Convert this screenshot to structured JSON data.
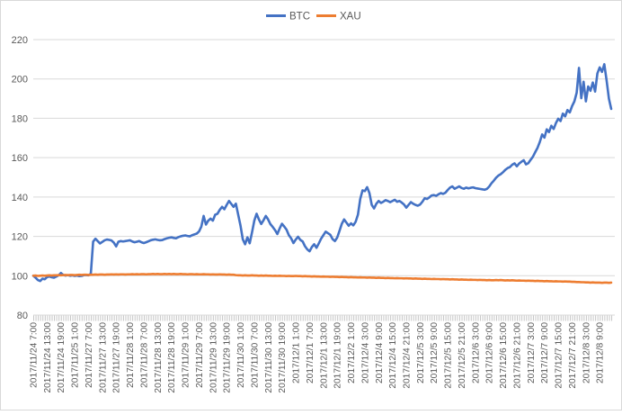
{
  "chart_data": {
    "type": "line",
    "title": "",
    "grid": "horizontal",
    "legend_position": "top-center",
    "ylim": [
      80,
      220
    ],
    "y_ticks": [
      80,
      100,
      120,
      140,
      160,
      180,
      200,
      220
    ],
    "points_per_tick": 6,
    "x_tick_labels": [
      "2017/11/24 7:00",
      "2017/11/24 13:00",
      "2017/11/24 19:00",
      "2017/11/25 1:00",
      "2017/11/27 7:00",
      "2017/11/27 13:00",
      "2017/11/27 19:00",
      "2017/11/28 1:00",
      "2017/11/28 7:00",
      "2017/11/28 13:00",
      "2017/11/28 19:00",
      "2017/11/29 1:00",
      "2017/11/29 7:00",
      "2017/11/29 13:00",
      "2017/11/29 19:00",
      "2017/11/30 1:00",
      "2017/11/30 7:00",
      "2017/11/30 13:00",
      "2017/11/30 19:00",
      "2017/12/1 1:00",
      "2017/12/1 7:00",
      "2017/12/1 13:00",
      "2017/12/1 19:00",
      "2017/12/2 1:00",
      "2017/12/4 3:00",
      "2017/12/4 9:00",
      "2017/12/4 15:00",
      "2017/12/4 21:00",
      "2017/12/5 3:00",
      "2017/12/5 9:00",
      "2017/12/5 15:00",
      "2017/12/5 21:00",
      "2017/12/6 3:00",
      "2017/12/6 9:00",
      "2017/12/6 15:00",
      "2017/12/6 21:00",
      "2017/12/7 3:00",
      "2017/12/7 9:00",
      "2017/12/7 15:00",
      "2017/12/7 21:00",
      "2017/12/8 3:00",
      "2017/12/8 9:00"
    ],
    "colors": {
      "grid": "#D9D9D9",
      "axis_text": "#595959",
      "tick_marks": "#C6C6C6",
      "frame_border": "#D9D9D9"
    },
    "series": [
      {
        "name": "BTC",
        "color": "#4472C4",
        "values": [
          100,
          99,
          97.8,
          97.3,
          98.5,
          98.2,
          99.3,
          99.6,
          99.2,
          99,
          99.6,
          100.2,
          101.4,
          100.4,
          100.1,
          100.3,
          100,
          100.2,
          99.9,
          100.1,
          99.8,
          99.9,
          100.3,
          100.4,
          100.2,
          101,
          117.3,
          118.8,
          117.6,
          116.4,
          117.2,
          118,
          118.4,
          118.2,
          117.9,
          116.8,
          114.9,
          117.3,
          117.6,
          117.4,
          117.6,
          117.8,
          118,
          117.4,
          117,
          117.3,
          117.6,
          117,
          116.6,
          117,
          117.5,
          118,
          118.3,
          118.5,
          118.2,
          118,
          118.1,
          118.6,
          119,
          119.3,
          119.5,
          119.2,
          119,
          119.6,
          120,
          120.3,
          120.5,
          120.2,
          120,
          120.6,
          121,
          121.4,
          122.5,
          125,
          130.4,
          126,
          128,
          129,
          128,
          131,
          131.5,
          133.5,
          135,
          133.8,
          136,
          138,
          136.5,
          135,
          136.6,
          131,
          125.5,
          118.5,
          116,
          119.5,
          116.5,
          122,
          128,
          131.5,
          128.6,
          126.3,
          128.2,
          130.4,
          128.6,
          126.2,
          124.8,
          123.2,
          121.2,
          124,
          126.4,
          125,
          123.4,
          120.6,
          119,
          116.6,
          118.4,
          119.8,
          118.2,
          117.4,
          115,
          113.4,
          112.4,
          114.6,
          116,
          114.2,
          116.4,
          118.8,
          120.6,
          122.4,
          121.6,
          120.8,
          118.6,
          117.6,
          119.4,
          122.8,
          126.4,
          128.6,
          127,
          125.4,
          126.6,
          125.6,
          127.4,
          131,
          139,
          143.4,
          143,
          145,
          142,
          136,
          134.2,
          136.6,
          138,
          137,
          137.6,
          138.4,
          138,
          137.4,
          138,
          138.6,
          137.6,
          138,
          137.2,
          136.2,
          134.6,
          136,
          137.4,
          136.6,
          136,
          135.6,
          136.2,
          137.6,
          139.4,
          139,
          139.8,
          140.8,
          141,
          140.6,
          141.4,
          142,
          141.6,
          142.2,
          143.6,
          144.8,
          145.4,
          144.2,
          144.8,
          145.4,
          144.6,
          144.2,
          144.8,
          144.4,
          144.7,
          144.9,
          144.5,
          144.3,
          144.1,
          143.9,
          143.7,
          144.1,
          145.3,
          147,
          148.3,
          149.8,
          150.9,
          151.6,
          152.6,
          153.8,
          154.7,
          155.2,
          156.4,
          157.1,
          155.6,
          157,
          157.9,
          158.7,
          156.6,
          157.2,
          158.9,
          160.5,
          162.8,
          165,
          168,
          171.8,
          170.2,
          174.4,
          173,
          176.2,
          174.6,
          177.6,
          179.8,
          178.6,
          182.4,
          181,
          184.2,
          183,
          186.2,
          188.6,
          193,
          205.6,
          190.2,
          198.6,
          188.6,
          196.2,
          194,
          198.2,
          193.6,
          202.8,
          205.9,
          203.6,
          207.5,
          199.2,
          190,
          184.8
        ]
      },
      {
        "name": "XAU",
        "color": "#ED7D31",
        "values": [
          100,
          100.1,
          99.9,
          100,
          100.1,
          100,
          100.1,
          100.2,
          100.1,
          100.2,
          100.2,
          100.3,
          100.2,
          100.3,
          100.4,
          100.3,
          100.4,
          100.4,
          100.3,
          100.4,
          100.5,
          100.4,
          100.5,
          100.5,
          100.4,
          100.5,
          100.5,
          100.6,
          100.5,
          100.6,
          100.6,
          100.5,
          100.6,
          100.6,
          100.7,
          100.6,
          100.7,
          100.6,
          100.7,
          100.7,
          100.6,
          100.7,
          100.7,
          100.8,
          100.7,
          100.8,
          100.7,
          100.8,
          100.8,
          100.7,
          100.8,
          100.8,
          100.9,
          100.8,
          100.9,
          100.8,
          100.8,
          100.9,
          100.8,
          100.9,
          100.8,
          100.9,
          100.8,
          100.8,
          100.9,
          100.8,
          100.8,
          100.7,
          100.8,
          100.8,
          100.7,
          100.8,
          100.7,
          100.7,
          100.8,
          100.7,
          100.7,
          100.6,
          100.7,
          100.6,
          100.6,
          100.7,
          100.6,
          100.6,
          100.5,
          100.6,
          100.5,
          100.5,
          100.3,
          100.2,
          100.2,
          100.1,
          100.2,
          100.1,
          100.1,
          100.2,
          100.1,
          100.1,
          100,
          100.1,
          100,
          100.1,
          100,
          100,
          99.9,
          100,
          99.9,
          100,
          99.9,
          99.9,
          99.8,
          99.9,
          99.8,
          99.8,
          99.9,
          99.8,
          99.8,
          99.7,
          99.8,
          99.7,
          99.7,
          99.6,
          99.7,
          99.6,
          99.6,
          99.5,
          99.6,
          99.5,
          99.5,
          99.4,
          99.5,
          99.4,
          99.4,
          99.3,
          99.4,
          99.3,
          99.3,
          99.2,
          99.3,
          99.2,
          99.2,
          99.1,
          99.2,
          99.1,
          99.1,
          99,
          99.1,
          99,
          99,
          98.9,
          99,
          98.9,
          98.9,
          98.8,
          98.9,
          98.8,
          98.8,
          98.7,
          98.8,
          98.7,
          98.7,
          98.6,
          98.7,
          98.6,
          98.6,
          98.5,
          98.6,
          98.5,
          98.5,
          98.4,
          98.5,
          98.4,
          98.4,
          98.3,
          98.4,
          98.3,
          98.3,
          98.2,
          98.3,
          98.2,
          98.2,
          98.1,
          98.2,
          98.1,
          98.1,
          98,
          98.1,
          98,
          98,
          97.9,
          98,
          97.9,
          97.9,
          97.8,
          97.9,
          97.8,
          97.8,
          97.7,
          97.8,
          97.7,
          97.7,
          97.8,
          97.7,
          97.8,
          97.7,
          97.6,
          97.7,
          97.6,
          97.7,
          97.6,
          97.5,
          97.6,
          97.5,
          97.5,
          97.4,
          97.5,
          97.4,
          97.4,
          97.3,
          97.4,
          97.3,
          97.3,
          97.2,
          97.3,
          97.2,
          97.2,
          97.1,
          97.2,
          97.1,
          97.1,
          97,
          97.1,
          97,
          97,
          96.9,
          96.9,
          96.8,
          96.8,
          96.7,
          96.7,
          96.6,
          96.6,
          96.5,
          96.6,
          96.5,
          96.5,
          96.5,
          96.4,
          96.5,
          96.5,
          96.4,
          96.5
        ]
      }
    ]
  }
}
